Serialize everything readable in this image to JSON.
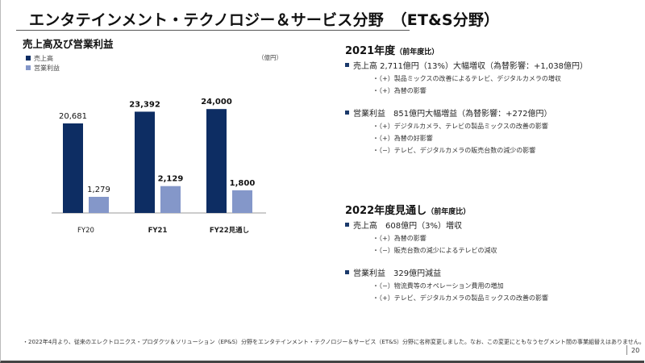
{
  "page": {
    "title": "エンタテインメント・テクノロジー＆サービス分野　（ET&S分野）",
    "page_number": "20",
    "footnote": "・2022年4月より、従来のエレクトロニクス・プロダクツ＆ソリューション（EP&S）分野をエンタテインメント・テクノロジー＆サービス（ET&S）分野に名称変更しました。なお、この変更にともなうセグメント間の事業組替えはありません。"
  },
  "chart_data": {
    "type": "bar",
    "title": "売上高及び営業利益",
    "unit": "（億円）",
    "categories": [
      "FY20",
      "FY21",
      "FY22見通し"
    ],
    "series": [
      {
        "name": "売上高",
        "values": [
          20681,
          23392,
          24000
        ],
        "labels": [
          "20,681",
          "23,392",
          "24,000"
        ],
        "color": "#0d2d63"
      },
      {
        "name": "営業利益",
        "values": [
          1279,
          2129,
          1800
        ],
        "labels": [
          "1,279",
          "2,129",
          "1,800"
        ],
        "color": "#8497c9"
      }
    ],
    "bold_categories": [
      false,
      true,
      true
    ]
  },
  "sections": [
    {
      "title": "2021年度",
      "title_note": "（前年度比）",
      "bullets": [
        {
          "text": "売上高 2,711億円（13%）大幅増収（為替影響：+1,038億円）",
          "subs": [
            "・（+）製品ミックスの改善によるテレビ、デジタルカメラの増収",
            "・（+）為替の影響"
          ]
        },
        {
          "text": "営業利益　851億円大幅増益（為替影響：+272億円）",
          "subs": [
            "・（+）デジタルカメラ、テレビの製品ミックスの改善の影響",
            "・（+）為替の好影響",
            "・（−）テレビ、デジタルカメラの販売台数の減少の影響"
          ]
        }
      ]
    },
    {
      "title": "2022年度見通し",
      "title_note": "（前年度比）",
      "bullets": [
        {
          "text": "売上高　608億円（3%）増収",
          "subs": [
            "・（+）為替の影響",
            "・（−）販売台数の減少によるテレビの減収"
          ]
        },
        {
          "text": "営業利益　329億円減益",
          "subs": [
            "・（−）物流費等のオペレーション費用の増加",
            "・（+）テレビ、デジタルカメラの製品ミックスの改善の影響"
          ]
        }
      ]
    }
  ]
}
